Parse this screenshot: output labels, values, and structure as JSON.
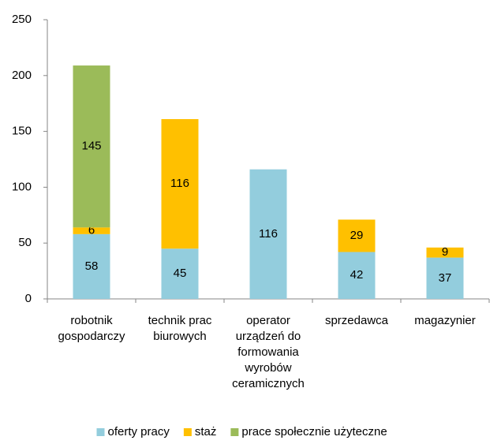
{
  "chart_data": {
    "type": "stacked_bar",
    "categories": [
      "robotnik gospodarczy",
      "technik prac biurowych",
      "operator urządzeń do formowania wyrobów ceramicznych",
      "sprzedawca",
      "magazynier"
    ],
    "series": [
      {
        "name": "oferty pracy",
        "color": "#93cddd",
        "values": [
          58,
          45,
          116,
          42,
          37
        ]
      },
      {
        "name": "staż",
        "color": "#ffc000",
        "values": [
          6,
          116,
          null,
          29,
          9
        ]
      },
      {
        "name": "prace społecznie użyteczne",
        "color": "#9bbb59",
        "values": [
          145,
          null,
          null,
          null,
          null
        ]
      }
    ],
    "ylim": [
      0,
      250
    ],
    "yticks": [
      0,
      50,
      100,
      150,
      200,
      250
    ],
    "grid": false,
    "legend": "bottom"
  }
}
